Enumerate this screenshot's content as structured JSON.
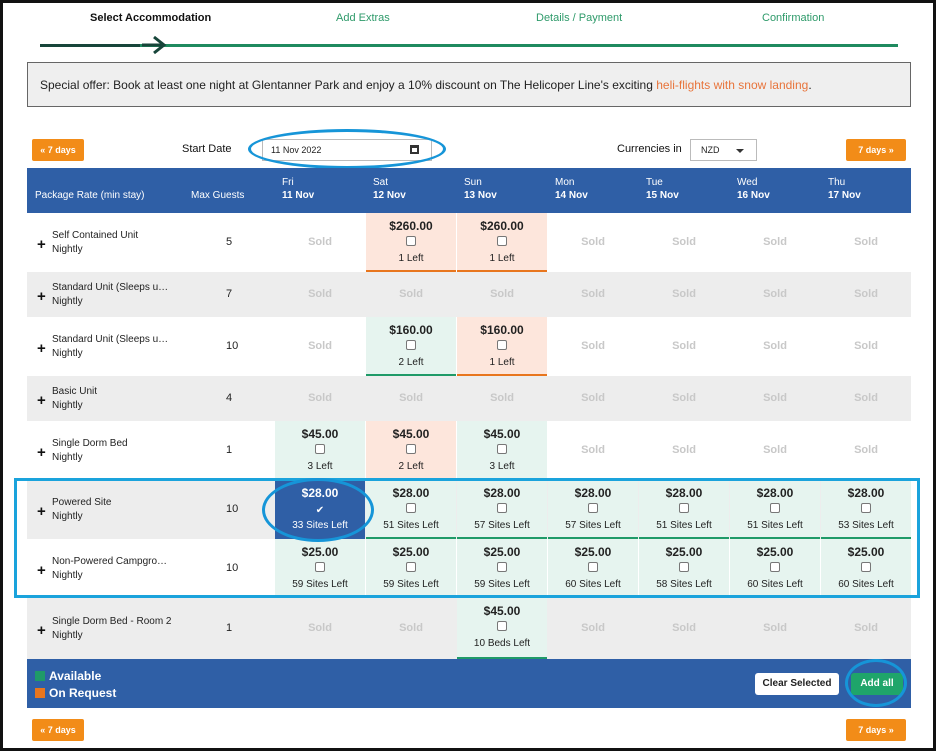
{
  "steps": [
    "Select Accommodation",
    "Add Extras",
    "Details / Payment",
    "Confirmation"
  ],
  "offer": {
    "text": "Special offer: Book at least one night at Glentanner Park and enjoy a 10% discount on The Helicoper Line's exciting ",
    "link": "heli-flights with snow landing",
    "end": "."
  },
  "controls": {
    "prev_label": "« 7 days",
    "next_label": "7 days »",
    "start_date_label": "Start Date",
    "start_date_value": "11 Nov 2022",
    "currency_label": "Currencies in",
    "currency_value": "NZD"
  },
  "header": {
    "package_label": "Package Rate (min stay)",
    "guests_label": "Max Guests",
    "days": [
      {
        "dow": "Fri",
        "date": "11 Nov"
      },
      {
        "dow": "Sat",
        "date": "12 Nov"
      },
      {
        "dow": "Sun",
        "date": "13 Nov"
      },
      {
        "dow": "Mon",
        "date": "14 Nov"
      },
      {
        "dow": "Tue",
        "date": "15 Nov"
      },
      {
        "dow": "Wed",
        "date": "16 Nov"
      },
      {
        "dow": "Thu",
        "date": "17 Nov"
      }
    ]
  },
  "sold_label": "Sold",
  "rows": [
    {
      "name": "Self Contained Unit",
      "rate": "Nightly",
      "guests": "5",
      "cells": [
        {
          "s": "sold"
        },
        {
          "s": "req",
          "price": "$260.00",
          "left": "1 Left"
        },
        {
          "s": "req",
          "price": "$260.00",
          "left": "1 Left"
        },
        {
          "s": "sold"
        },
        {
          "s": "sold"
        },
        {
          "s": "sold"
        },
        {
          "s": "sold"
        }
      ]
    },
    {
      "name": "Standard Unit (Sleeps u…",
      "rate": "Nightly",
      "guests": "7",
      "cells": [
        {
          "s": "sold"
        },
        {
          "s": "sold"
        },
        {
          "s": "sold"
        },
        {
          "s": "sold"
        },
        {
          "s": "sold"
        },
        {
          "s": "sold"
        },
        {
          "s": "sold"
        }
      ]
    },
    {
      "name": "Standard Unit (Sleeps u…",
      "rate": "Nightly",
      "guests": "10",
      "cells": [
        {
          "s": "sold"
        },
        {
          "s": "avail",
          "price": "$160.00",
          "left": "2 Left"
        },
        {
          "s": "req",
          "price": "$160.00",
          "left": "1 Left"
        },
        {
          "s": "sold"
        },
        {
          "s": "sold"
        },
        {
          "s": "sold"
        },
        {
          "s": "sold"
        }
      ]
    },
    {
      "name": "Basic Unit",
      "rate": "Nightly",
      "guests": "4",
      "cells": [
        {
          "s": "sold"
        },
        {
          "s": "sold"
        },
        {
          "s": "sold"
        },
        {
          "s": "sold"
        },
        {
          "s": "sold"
        },
        {
          "s": "sold"
        },
        {
          "s": "sold"
        }
      ]
    },
    {
      "name": "Single Dorm Bed",
      "rate": "Nightly",
      "guests": "1",
      "cells": [
        {
          "s": "avail",
          "price": "$45.00",
          "left": "3 Left"
        },
        {
          "s": "req",
          "price": "$45.00",
          "left": "2 Left"
        },
        {
          "s": "avail",
          "price": "$45.00",
          "left": "3 Left"
        },
        {
          "s": "sold"
        },
        {
          "s": "sold"
        },
        {
          "s": "sold"
        },
        {
          "s": "sold"
        }
      ]
    },
    {
      "name": "Powered Site",
      "rate": "Nightly",
      "guests": "10",
      "cells": [
        {
          "s": "sel",
          "price": "$28.00",
          "left": "33 Sites Left"
        },
        {
          "s": "avail",
          "price": "$28.00",
          "left": "51 Sites Left"
        },
        {
          "s": "avail",
          "price": "$28.00",
          "left": "57 Sites Left"
        },
        {
          "s": "avail",
          "price": "$28.00",
          "left": "57 Sites Left"
        },
        {
          "s": "avail",
          "price": "$28.00",
          "left": "51 Sites Left"
        },
        {
          "s": "avail",
          "price": "$28.00",
          "left": "51 Sites Left"
        },
        {
          "s": "avail",
          "price": "$28.00",
          "left": "53 Sites Left"
        }
      ]
    },
    {
      "name": "Non-Powered Campgro…",
      "rate": "Nightly",
      "guests": "10",
      "cells": [
        {
          "s": "avail",
          "price": "$25.00",
          "left": "59 Sites Left"
        },
        {
          "s": "avail",
          "price": "$25.00",
          "left": "59 Sites Left"
        },
        {
          "s": "avail",
          "price": "$25.00",
          "left": "59 Sites Left"
        },
        {
          "s": "avail",
          "price": "$25.00",
          "left": "60 Sites Left"
        },
        {
          "s": "avail",
          "price": "$25.00",
          "left": "58 Sites Left"
        },
        {
          "s": "avail",
          "price": "$25.00",
          "left": "60 Sites Left"
        },
        {
          "s": "avail",
          "price": "$25.00",
          "left": "60 Sites Left"
        }
      ]
    },
    {
      "name": "Single Dorm Bed - Room 2",
      "rate": "Nightly",
      "guests": "1",
      "cells": [
        {
          "s": "sold"
        },
        {
          "s": "sold"
        },
        {
          "s": "avail",
          "price": "$45.00",
          "left": "10 Beds Left"
        },
        {
          "s": "sold"
        },
        {
          "s": "sold"
        },
        {
          "s": "sold"
        },
        {
          "s": "sold"
        }
      ]
    }
  ],
  "legend": {
    "available": "Available",
    "on_request": "On Request"
  },
  "footer": {
    "clear_label": "Clear Selected",
    "add_all_label": "Add all"
  },
  "colors": {
    "available": "#1f9a68",
    "on_request": "#e8761e",
    "header_blue": "#2f5fa6",
    "accent_orange": "#f28c18"
  }
}
